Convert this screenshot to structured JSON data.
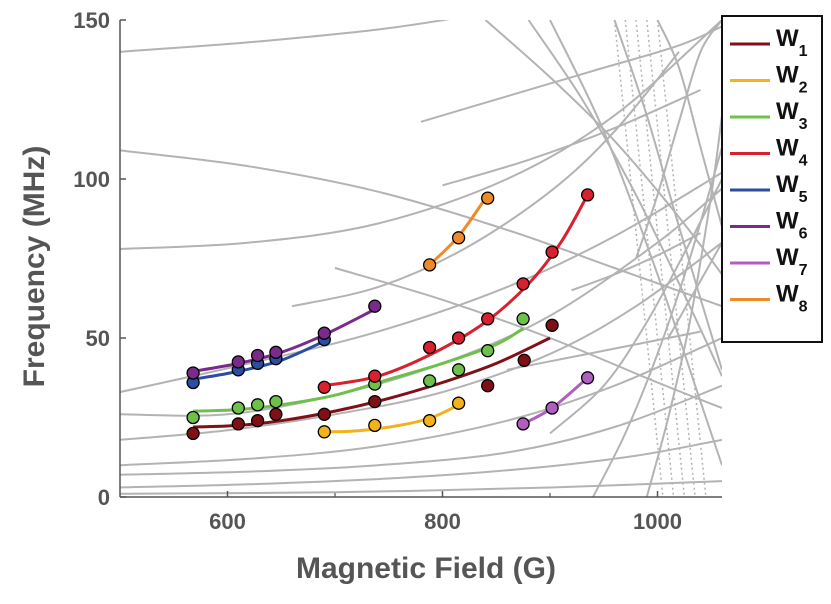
{
  "chart_data": {
    "type": "line",
    "title": "",
    "xlabel": "Magnetic Field (G)",
    "ylabel": "Frequency (MHz)",
    "xlim": [
      500,
      1060
    ],
    "ylim": [
      0,
      150
    ],
    "xticks": [
      600,
      800,
      1000
    ],
    "yticks": [
      0,
      50,
      100,
      150
    ],
    "grid": false,
    "legend_position": "top-right",
    "background_curves_color": "#b3b3b3",
    "series": [
      {
        "name": "W",
        "sub": "1",
        "color": "#7f1016",
        "points": [
          [
            568,
            20
          ],
          [
            610,
            23
          ],
          [
            628,
            24
          ],
          [
            645,
            26
          ],
          [
            690,
            26
          ],
          [
            737,
            30
          ],
          [
            842,
            35
          ],
          [
            876,
            43
          ],
          [
            902,
            54
          ]
        ],
        "fit": [
          [
            568,
            22
          ],
          [
            610,
            22.5
          ],
          [
            650,
            24
          ],
          [
            700,
            27
          ],
          [
            750,
            31
          ],
          [
            800,
            36
          ],
          [
            850,
            42
          ],
          [
            900,
            50
          ]
        ]
      },
      {
        "name": "W",
        "sub": "2",
        "color": "#f2b21b",
        "points": [
          [
            690,
            20.5
          ],
          [
            737,
            22.5
          ],
          [
            788,
            24
          ],
          [
            815,
            29.5
          ]
        ],
        "fit": [
          [
            690,
            20.5
          ],
          [
            720,
            20.8
          ],
          [
            760,
            22.5
          ],
          [
            790,
            25
          ],
          [
            815,
            29
          ]
        ]
      },
      {
        "name": "W",
        "sub": "3",
        "color": "#6fc04b",
        "points": [
          [
            568,
            25
          ],
          [
            610,
            28
          ],
          [
            628,
            29
          ],
          [
            645,
            30
          ],
          [
            737,
            35.5
          ],
          [
            788,
            36.5
          ],
          [
            815,
            40
          ],
          [
            842,
            46
          ],
          [
            875,
            56
          ]
        ],
        "fit": [
          [
            568,
            27
          ],
          [
            610,
            27.5
          ],
          [
            650,
            29
          ],
          [
            700,
            32
          ],
          [
            750,
            37
          ],
          [
            800,
            42
          ],
          [
            850,
            48
          ],
          [
            875,
            53
          ]
        ]
      },
      {
        "name": "W",
        "sub": "4",
        "color": "#d7212e",
        "points": [
          [
            690,
            34.5
          ],
          [
            737,
            38
          ],
          [
            788,
            47
          ],
          [
            815,
            50
          ],
          [
            842,
            56
          ],
          [
            875,
            67
          ],
          [
            902,
            77
          ],
          [
            935,
            95
          ]
        ],
        "fit": [
          [
            690,
            35
          ],
          [
            740,
            38
          ],
          [
            790,
            45
          ],
          [
            840,
            55
          ],
          [
            880,
            67
          ],
          [
            910,
            80
          ],
          [
            935,
            95
          ]
        ]
      },
      {
        "name": "W",
        "sub": "5",
        "color": "#2a4ea0",
        "points": [
          [
            568,
            36
          ],
          [
            610,
            40
          ],
          [
            628,
            42
          ],
          [
            645,
            43.5
          ],
          [
            690,
            49.5
          ]
        ],
        "fit": [
          [
            568,
            37
          ],
          [
            610,
            39.5
          ],
          [
            650,
            43
          ],
          [
            690,
            49
          ]
        ]
      },
      {
        "name": "W",
        "sub": "6",
        "color": "#7a2a8a",
        "points": [
          [
            568,
            39
          ],
          [
            610,
            42.5
          ],
          [
            628,
            44.5
          ],
          [
            645,
            45.5
          ],
          [
            690,
            51.5
          ],
          [
            737,
            60
          ]
        ],
        "fit": [
          [
            568,
            39.5
          ],
          [
            610,
            42
          ],
          [
            650,
            45.5
          ],
          [
            690,
            51
          ],
          [
            737,
            59
          ]
        ]
      },
      {
        "name": "W",
        "sub": "7",
        "color": "#b05ec0",
        "points": [
          [
            875,
            23
          ],
          [
            902,
            28
          ],
          [
            935,
            37.5
          ]
        ],
        "fit": [
          [
            875,
            23
          ],
          [
            902,
            28
          ],
          [
            935,
            37.5
          ]
        ]
      },
      {
        "name": "W",
        "sub": "8",
        "color": "#ef8a2b",
        "points": [
          [
            788,
            73
          ],
          [
            815,
            81.5
          ],
          [
            842,
            94
          ]
        ],
        "fit": [
          [
            788,
            73
          ],
          [
            815,
            82
          ],
          [
            842,
            95
          ]
        ]
      }
    ]
  }
}
